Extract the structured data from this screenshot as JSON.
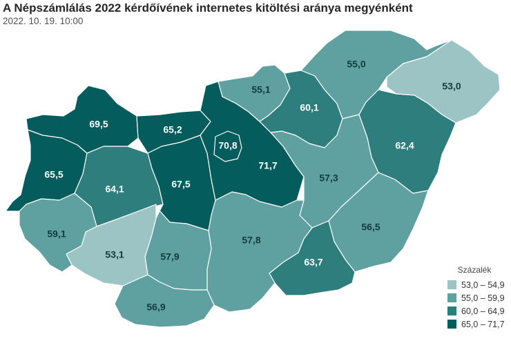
{
  "title": "A Népszámlálás 2022 kérdőívének internetes kitöltési aránya megyénként",
  "subtitle": "2022. 10. 19. 10:00",
  "legend": {
    "title": "Százalék",
    "items": [
      {
        "label": "53,0 – 54,9",
        "color": "#9cc4c4"
      },
      {
        "label": "55,0 – 59,9",
        "color": "#5fa0a0"
      },
      {
        "label": "60,0 – 64,9",
        "color": "#2e7e7e"
      },
      {
        "label": "65,0 – 71,7",
        "color": "#055c5c"
      }
    ]
  },
  "regions": [
    {
      "id": "gyor-moson-sopron",
      "value": "69,5",
      "color": "#055c5c"
    },
    {
      "id": "komarom-esztergom",
      "value": "65,2",
      "color": "#055c5c"
    },
    {
      "id": "vas",
      "value": "65,5",
      "color": "#055c5c"
    },
    {
      "id": "veszprem",
      "value": "64,1",
      "color": "#2e7e7e"
    },
    {
      "id": "fejer",
      "value": "67,5",
      "color": "#055c5c"
    },
    {
      "id": "pest",
      "value": "71,7",
      "color": "#055c5c"
    },
    {
      "id": "budapest",
      "value": "70,8",
      "color": "#055c5c"
    },
    {
      "id": "nograd",
      "value": "55,1",
      "color": "#5fa0a0"
    },
    {
      "id": "heves",
      "value": "60,1",
      "color": "#2e7e7e"
    },
    {
      "id": "borsod-abauj-zemplen",
      "value": "55,0",
      "color": "#5fa0a0"
    },
    {
      "id": "szabolcs-szatmar-bereg",
      "value": "53,0",
      "color": "#9cc4c4"
    },
    {
      "id": "hajdu-bihar",
      "value": "62,4",
      "color": "#2e7e7e"
    },
    {
      "id": "jasz-nagykun-szolnok",
      "value": "57,3",
      "color": "#5fa0a0"
    },
    {
      "id": "bekes",
      "value": "56,5",
      "color": "#5fa0a0"
    },
    {
      "id": "csongrad-csanad",
      "value": "63,7",
      "color": "#2e7e7e"
    },
    {
      "id": "bacs-kiskun",
      "value": "57,8",
      "color": "#5fa0a0"
    },
    {
      "id": "tolna",
      "value": "57,9",
      "color": "#5fa0a0"
    },
    {
      "id": "baranya",
      "value": "56,9",
      "color": "#5fa0a0"
    },
    {
      "id": "somogy",
      "value": "53,1",
      "color": "#9cc4c4"
    },
    {
      "id": "zala",
      "value": "59,1",
      "color": "#5fa0a0"
    }
  ]
}
